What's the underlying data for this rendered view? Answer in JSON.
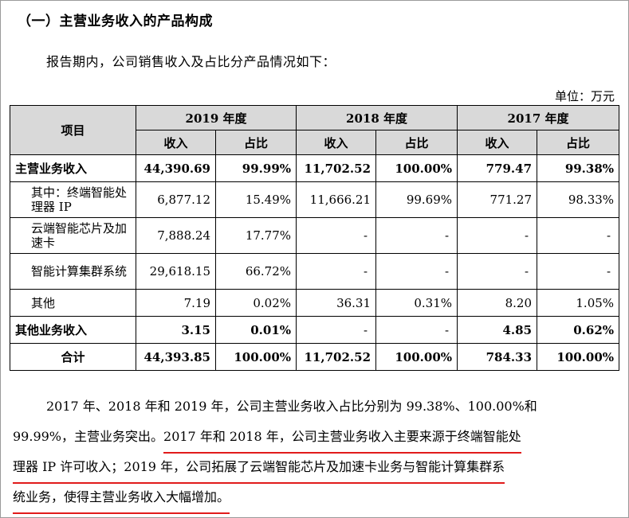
{
  "heading": "（一）主营业务收入的产品构成",
  "intro": "报告期内，公司销售收入及占比分产品情况如下：",
  "unit": "单位：万元",
  "table": {
    "col_item": "项目",
    "years": [
      "2019 年度",
      "2018 年度",
      "2017 年度"
    ],
    "sub_cols": [
      "收入",
      "占比"
    ],
    "rows": [
      {
        "label": "主营业务收入",
        "values": [
          "44,390.69",
          "99.99%",
          "11,702.52",
          "100.00%",
          "779.47",
          "99.38%"
        ]
      },
      {
        "label": "其中：终端智能处理器 IP",
        "values": [
          "6,877.12",
          "15.49%",
          "11,666.21",
          "99.69%",
          "771.27",
          "98.33%"
        ]
      },
      {
        "label": "云端智能芯片及加速卡",
        "values": [
          "7,888.24",
          "17.77%",
          "-",
          "-",
          "-",
          "-"
        ]
      },
      {
        "label": "智能计算集群系统",
        "values": [
          "29,618.15",
          "66.72%",
          "-",
          "-",
          "-",
          "-"
        ]
      },
      {
        "label": "其他",
        "values": [
          "7.19",
          "0.02%",
          "36.31",
          "0.31%",
          "8.20",
          "1.05%"
        ]
      },
      {
        "label": "其他业务收入",
        "values": [
          "3.15",
          "0.01%",
          "-",
          "-",
          "4.85",
          "0.62%"
        ]
      },
      {
        "label": "合计",
        "values": [
          "44,393.85",
          "100.00%",
          "11,702.52",
          "100.00%",
          "784.33",
          "100.00%"
        ]
      }
    ]
  },
  "paragraph": {
    "line1": "2017 年、2018 年和 2019 年，公司主营业务收入占比分别为 99.38%、100.00%和",
    "line2a": "99.99%，主营业务突出。",
    "line2b": "2017 年和 2018 年，公司主营业务收入主要来源于终端智能处",
    "line3": "理器 IP 许可收入；2019 年，公司拓展了云端智能芯片及加速卡业务与智能计算集群系",
    "line4": "统业务，使得主营业务收入大幅增加。"
  },
  "colors": {
    "header_bg": "#d9d9d9",
    "underline": "#e11b1b",
    "border": "#000000"
  }
}
